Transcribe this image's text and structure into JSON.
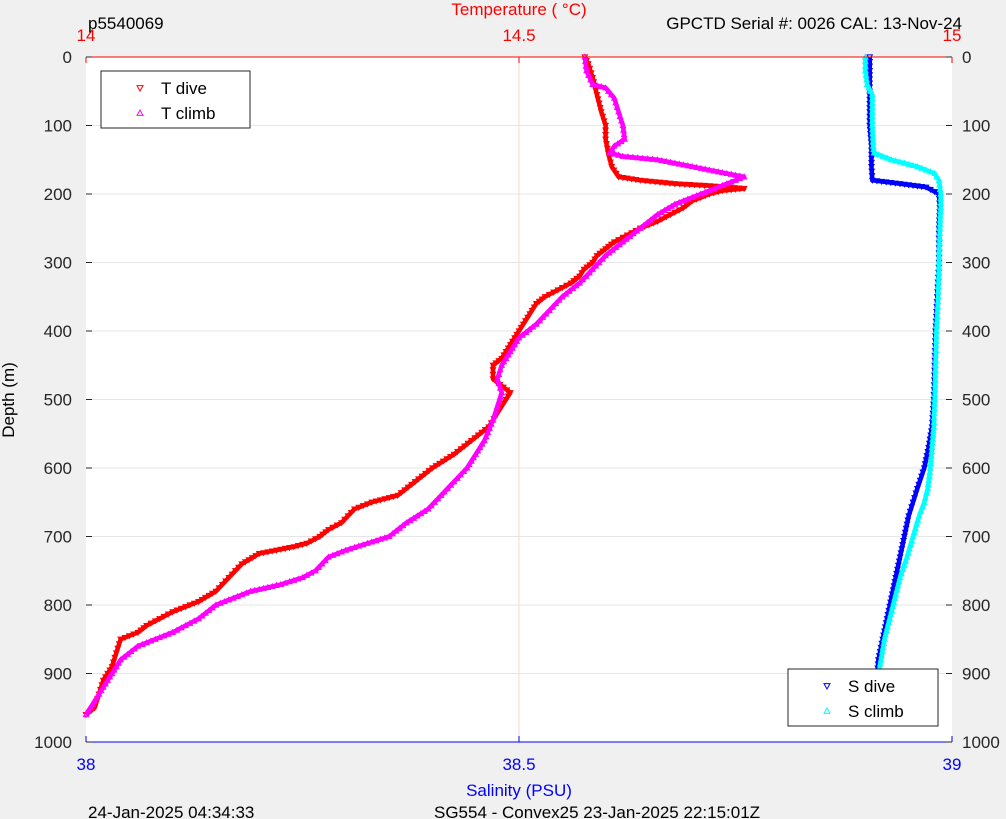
{
  "header": {
    "profile_id": "p5540069",
    "serial_cal": "GPCTD Serial #: 0026 CAL: 13-Nov-24"
  },
  "footer": {
    "plot_time": "24-Jan-2025 04:34:33",
    "mission": "SG554 - Convex25 23-Jan-2025 22:15:01Z"
  },
  "colors": {
    "t_dive": "#ff0000",
    "t_climb": "#ff00ff",
    "s_dive": "#0000ff",
    "s_climb": "#00ffff",
    "temp_axis": "#ff0000",
    "sal_axis": "#0000ff"
  },
  "chart_data": {
    "type": "line",
    "temperature_axis": {
      "label": "Temperature (    °C)",
      "range": [
        14,
        15
      ],
      "ticks": [
        "14",
        "14.5",
        "15"
      ]
    },
    "salinity_axis": {
      "label": "Salinity (PSU)",
      "range": [
        38,
        39
      ],
      "ticks": [
        "38",
        "38.5",
        "39"
      ]
    },
    "depth_axis": {
      "label": "Depth (m)",
      "range": [
        0,
        1000
      ],
      "reversed": true,
      "ticks": [
        "0",
        "100",
        "200",
        "300",
        "400",
        "500",
        "600",
        "700",
        "800",
        "900",
        "1000"
      ]
    },
    "grid": true,
    "legends": [
      {
        "position": "top-left",
        "entries": [
          "T dive",
          "T climb"
        ]
      },
      {
        "position": "bottom-right",
        "entries": [
          "S dive",
          "S climb"
        ]
      }
    ],
    "series": [
      {
        "name": "T dive",
        "variable": "temperature",
        "marker": "triangle-down",
        "points": [
          [
            14.576,
            0
          ],
          [
            14.58,
            10
          ],
          [
            14.585,
            30
          ],
          [
            14.59,
            55
          ],
          [
            14.595,
            80
          ],
          [
            14.6,
            100
          ],
          [
            14.6,
            120
          ],
          [
            14.603,
            140
          ],
          [
            14.607,
            160
          ],
          [
            14.615,
            175
          ],
          [
            14.64,
            180
          ],
          [
            14.68,
            185
          ],
          [
            14.72,
            188
          ],
          [
            14.76,
            192
          ],
          [
            14.735,
            195
          ],
          [
            14.72,
            200
          ],
          [
            14.7,
            210
          ],
          [
            14.69,
            220
          ],
          [
            14.675,
            230
          ],
          [
            14.66,
            240
          ],
          [
            14.64,
            250
          ],
          [
            14.625,
            260
          ],
          [
            14.61,
            270
          ],
          [
            14.6,
            280
          ],
          [
            14.59,
            290
          ],
          [
            14.585,
            300
          ],
          [
            14.575,
            310
          ],
          [
            14.57,
            320
          ],
          [
            14.56,
            330
          ],
          [
            14.545,
            340
          ],
          [
            14.53,
            350
          ],
          [
            14.52,
            360
          ],
          [
            14.51,
            380
          ],
          [
            14.5,
            400
          ],
          [
            14.49,
            420
          ],
          [
            14.48,
            440
          ],
          [
            14.47,
            450
          ],
          [
            14.47,
            470
          ],
          [
            14.49,
            490
          ],
          [
            14.48,
            510
          ],
          [
            14.465,
            540
          ],
          [
            14.445,
            560
          ],
          [
            14.425,
            580
          ],
          [
            14.4,
            600
          ],
          [
            14.38,
            620
          ],
          [
            14.36,
            640
          ],
          [
            14.33,
            650
          ],
          [
            14.31,
            660
          ],
          [
            14.295,
            680
          ],
          [
            14.28,
            690
          ],
          [
            14.27,
            700
          ],
          [
            14.255,
            710
          ],
          [
            14.24,
            715
          ],
          [
            14.22,
            720
          ],
          [
            14.2,
            725
          ],
          [
            14.18,
            740
          ],
          [
            14.165,
            760
          ],
          [
            14.15,
            780
          ],
          [
            14.13,
            795
          ],
          [
            14.1,
            810
          ],
          [
            14.085,
            820
          ],
          [
            14.07,
            830
          ],
          [
            14.06,
            840
          ],
          [
            14.04,
            850
          ],
          [
            14.035,
            870
          ],
          [
            14.03,
            890
          ],
          [
            14.02,
            910
          ],
          [
            14.015,
            930
          ],
          [
            14.01,
            950
          ],
          [
            14.0,
            960
          ]
        ]
      },
      {
        "name": "T climb",
        "variable": "temperature",
        "marker": "triangle-up",
        "points": [
          [
            14.576,
            0
          ],
          [
            14.578,
            20
          ],
          [
            14.585,
            40
          ],
          [
            14.6,
            45
          ],
          [
            14.61,
            60
          ],
          [
            14.615,
            80
          ],
          [
            14.62,
            100
          ],
          [
            14.622,
            120
          ],
          [
            14.61,
            130
          ],
          [
            14.605,
            140
          ],
          [
            14.62,
            145
          ],
          [
            14.66,
            150
          ],
          [
            14.7,
            160
          ],
          [
            14.74,
            170
          ],
          [
            14.76,
            175
          ],
          [
            14.74,
            185
          ],
          [
            14.72,
            195
          ],
          [
            14.7,
            205
          ],
          [
            14.68,
            215
          ],
          [
            14.66,
            230
          ],
          [
            14.64,
            250
          ],
          [
            14.62,
            270
          ],
          [
            14.6,
            290
          ],
          [
            14.585,
            310
          ],
          [
            14.57,
            330
          ],
          [
            14.55,
            350
          ],
          [
            14.535,
            370
          ],
          [
            14.52,
            390
          ],
          [
            14.5,
            410
          ],
          [
            14.49,
            430
          ],
          [
            14.48,
            450
          ],
          [
            14.475,
            470
          ],
          [
            14.48,
            490
          ],
          [
            14.475,
            510
          ],
          [
            14.47,
            530
          ],
          [
            14.46,
            560
          ],
          [
            14.45,
            580
          ],
          [
            14.44,
            600
          ],
          [
            14.425,
            620
          ],
          [
            14.41,
            640
          ],
          [
            14.395,
            660
          ],
          [
            14.37,
            680
          ],
          [
            14.35,
            700
          ],
          [
            14.325,
            710
          ],
          [
            14.3,
            720
          ],
          [
            14.28,
            730
          ],
          [
            14.265,
            750
          ],
          [
            14.25,
            760
          ],
          [
            14.225,
            770
          ],
          [
            14.19,
            780
          ],
          [
            14.17,
            790
          ],
          [
            14.15,
            800
          ],
          [
            14.13,
            820
          ],
          [
            14.1,
            840
          ],
          [
            14.08,
            850
          ],
          [
            14.06,
            860
          ],
          [
            14.04,
            880
          ],
          [
            14.03,
            900
          ],
          [
            14.02,
            920
          ],
          [
            14.01,
            940
          ],
          [
            14.0,
            960
          ]
        ]
      },
      {
        "name": "S dive",
        "variable": "salinity",
        "marker": "triangle-down",
        "points": [
          [
            38.905,
            0
          ],
          [
            38.905,
            20
          ],
          [
            38.905,
            50
          ],
          [
            38.905,
            80
          ],
          [
            38.905,
            100
          ],
          [
            38.907,
            130
          ],
          [
            38.907,
            160
          ],
          [
            38.908,
            180
          ],
          [
            38.94,
            185
          ],
          [
            38.97,
            190
          ],
          [
            38.985,
            200
          ],
          [
            38.986,
            220
          ],
          [
            38.985,
            250
          ],
          [
            38.985,
            300
          ],
          [
            38.983,
            350
          ],
          [
            38.981,
            400
          ],
          [
            38.98,
            450
          ],
          [
            38.979,
            500
          ],
          [
            38.977,
            540
          ],
          [
            38.973,
            570
          ],
          [
            38.968,
            600
          ],
          [
            38.96,
            630
          ],
          [
            38.955,
            650
          ],
          [
            38.95,
            670
          ],
          [
            38.945,
            700
          ],
          [
            38.94,
            730
          ],
          [
            38.935,
            760
          ],
          [
            38.93,
            790
          ],
          [
            38.925,
            820
          ],
          [
            38.92,
            850
          ],
          [
            38.915,
            880
          ],
          [
            38.913,
            910
          ],
          [
            38.912,
            940
          ],
          [
            38.912,
            965
          ]
        ]
      },
      {
        "name": "S climb",
        "variable": "salinity",
        "marker": "triangle-up",
        "points": [
          [
            38.9,
            0
          ],
          [
            38.9,
            20
          ],
          [
            38.902,
            40
          ],
          [
            38.908,
            55
          ],
          [
            38.908,
            80
          ],
          [
            38.908,
            100
          ],
          [
            38.909,
            130
          ],
          [
            38.91,
            140
          ],
          [
            38.93,
            150
          ],
          [
            38.96,
            160
          ],
          [
            38.98,
            170
          ],
          [
            38.985,
            180
          ],
          [
            38.987,
            200
          ],
          [
            38.987,
            220
          ],
          [
            38.986,
            250
          ],
          [
            38.985,
            300
          ],
          [
            38.984,
            350
          ],
          [
            38.982,
            400
          ],
          [
            38.981,
            450
          ],
          [
            38.98,
            500
          ],
          [
            38.979,
            540
          ],
          [
            38.977,
            570
          ],
          [
            38.975,
            600
          ],
          [
            38.972,
            630
          ],
          [
            38.968,
            650
          ],
          [
            38.962,
            670
          ],
          [
            38.955,
            700
          ],
          [
            38.948,
            730
          ],
          [
            38.94,
            760
          ],
          [
            38.934,
            790
          ],
          [
            38.928,
            820
          ],
          [
            38.922,
            850
          ],
          [
            38.918,
            880
          ],
          [
            38.914,
            910
          ],
          [
            38.912,
            940
          ],
          [
            38.912,
            965
          ]
        ]
      }
    ]
  }
}
